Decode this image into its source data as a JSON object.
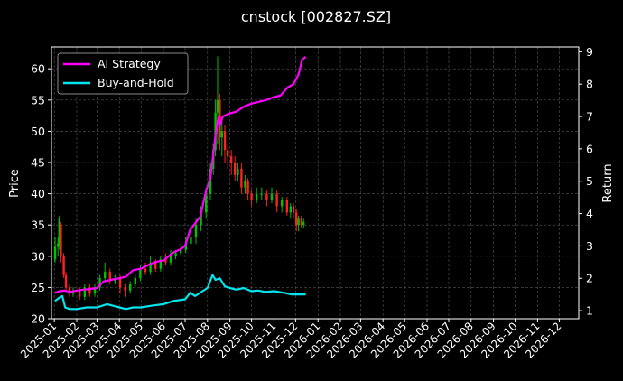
{
  "chart_data": {
    "type": "line",
    "title": "cnstock [002827.SZ]",
    "ylabel_left": "Price",
    "ylabel_right": "Return",
    "xlabel": "",
    "grid": true,
    "legend_position": "top-left",
    "x_ticks": [
      "2025-01",
      "2025-02",
      "2025-03",
      "2025-04",
      "2025-05",
      "2025-06",
      "2025-07",
      "2025-08",
      "2025-09",
      "2025-10",
      "2025-11",
      "2025-12",
      "2026-01",
      "2026-02",
      "2026-03",
      "2026-04",
      "2026-05",
      "2026-06",
      "2026-07",
      "2026-08",
      "2026-09",
      "2026-10",
      "2026-11",
      "2026-12"
    ],
    "x_range": [
      "2024-12-28",
      "2026-12-28"
    ],
    "ylim_left": [
      20,
      63.5
    ],
    "yticks_left": [
      20,
      25,
      30,
      35,
      40,
      45,
      50,
      55,
      60
    ],
    "ylim_right": [
      0.75,
      9.15
    ],
    "yticks_right": [
      1,
      2,
      3,
      4,
      5,
      6,
      7,
      8,
      9
    ],
    "colors": {
      "up": "#00c000",
      "down": "#ff2020",
      "ai": "#ff00ff",
      "bh": "#00e5ee",
      "grid": "#555555"
    },
    "series": [
      {
        "name": "AI Strategy",
        "axis": "right",
        "points": [
          [
            "2025-01-02",
            1.55
          ],
          [
            "2025-01-08",
            1.6
          ],
          [
            "2025-01-15",
            1.62
          ],
          [
            "2025-01-22",
            1.58
          ],
          [
            "2025-02-01",
            1.62
          ],
          [
            "2025-02-10",
            1.65
          ],
          [
            "2025-02-20",
            1.67
          ],
          [
            "2025-03-01",
            1.7
          ],
          [
            "2025-03-10",
            1.9
          ],
          [
            "2025-03-20",
            1.95
          ],
          [
            "2025-04-01",
            2.0
          ],
          [
            "2025-04-10",
            2.05
          ],
          [
            "2025-04-20",
            2.25
          ],
          [
            "2025-05-01",
            2.3
          ],
          [
            "2025-05-10",
            2.4
          ],
          [
            "2025-05-20",
            2.5
          ],
          [
            "2025-06-01",
            2.55
          ],
          [
            "2025-06-15",
            2.8
          ],
          [
            "2025-06-25",
            2.9
          ],
          [
            "2025-07-01",
            3.0
          ],
          [
            "2025-07-08",
            3.5
          ],
          [
            "2025-07-15",
            3.7
          ],
          [
            "2025-07-22",
            3.9
          ],
          [
            "2025-07-30",
            4.7
          ],
          [
            "2025-08-05",
            5.1
          ],
          [
            "2025-08-12",
            6.4
          ],
          [
            "2025-08-16",
            7.0
          ],
          [
            "2025-08-18",
            6.7
          ],
          [
            "2025-08-22",
            7.0
          ],
          [
            "2025-09-01",
            7.1
          ],
          [
            "2025-09-10",
            7.15
          ],
          [
            "2025-09-20",
            7.3
          ],
          [
            "2025-10-01",
            7.4
          ],
          [
            "2025-10-10",
            7.45
          ],
          [
            "2025-10-20",
            7.5
          ],
          [
            "2025-11-01",
            7.6
          ],
          [
            "2025-11-10",
            7.65
          ],
          [
            "2025-11-20",
            7.9
          ],
          [
            "2025-11-28",
            8.0
          ],
          [
            "2025-12-05",
            8.3
          ],
          [
            "2025-12-10",
            8.75
          ],
          [
            "2025-12-15",
            8.85
          ]
        ]
      },
      {
        "name": "Buy-and-Hold",
        "axis": "right",
        "points": [
          [
            "2025-01-02",
            1.3
          ],
          [
            "2025-01-08",
            1.4
          ],
          [
            "2025-01-12",
            1.45
          ],
          [
            "2025-01-16",
            1.1
          ],
          [
            "2025-01-22",
            1.05
          ],
          [
            "2025-02-01",
            1.05
          ],
          [
            "2025-02-15",
            1.1
          ],
          [
            "2025-03-01",
            1.1
          ],
          [
            "2025-03-15",
            1.2
          ],
          [
            "2025-04-01",
            1.1
          ],
          [
            "2025-04-10",
            1.05
          ],
          [
            "2025-04-20",
            1.1
          ],
          [
            "2025-05-01",
            1.1
          ],
          [
            "2025-05-15",
            1.15
          ],
          [
            "2025-06-01",
            1.2
          ],
          [
            "2025-06-15",
            1.3
          ],
          [
            "2025-07-01",
            1.35
          ],
          [
            "2025-07-08",
            1.55
          ],
          [
            "2025-07-15",
            1.45
          ],
          [
            "2025-07-25",
            1.6
          ],
          [
            "2025-08-01",
            1.7
          ],
          [
            "2025-08-08",
            2.1
          ],
          [
            "2025-08-12",
            1.95
          ],
          [
            "2025-08-18",
            2.0
          ],
          [
            "2025-08-25",
            1.75
          ],
          [
            "2025-09-01",
            1.7
          ],
          [
            "2025-09-10",
            1.65
          ],
          [
            "2025-09-20",
            1.7
          ],
          [
            "2025-10-01",
            1.6
          ],
          [
            "2025-10-10",
            1.62
          ],
          [
            "2025-10-20",
            1.58
          ],
          [
            "2025-11-01",
            1.6
          ],
          [
            "2025-11-15",
            1.55
          ],
          [
            "2025-11-25",
            1.5
          ],
          [
            "2025-12-05",
            1.5
          ],
          [
            "2025-12-15",
            1.5
          ]
        ]
      }
    ],
    "candles": [
      [
        "2025-01-02",
        29.5,
        31.5,
        29,
        33
      ],
      [
        "2025-01-06",
        31.5,
        32,
        30,
        33
      ],
      [
        "2025-01-08",
        32,
        36,
        31,
        36.5
      ],
      [
        "2025-01-10",
        35,
        30,
        29,
        35.5
      ],
      [
        "2025-01-14",
        30,
        27,
        26.5,
        30.5
      ],
      [
        "2025-01-17",
        27,
        25,
        24.5,
        27.5
      ],
      [
        "2025-01-22",
        25,
        24,
        23.5,
        25.5
      ],
      [
        "2025-01-27",
        24,
        24.5,
        23.5,
        25
      ],
      [
        "2025-02-05",
        24.5,
        23.5,
        23,
        25
      ],
      [
        "2025-02-12",
        23.5,
        25,
        23,
        25.5
      ],
      [
        "2025-02-19",
        25,
        24,
        23.5,
        25.5
      ],
      [
        "2025-02-26",
        24,
        25,
        23.5,
        25.5
      ],
      [
        "2025-03-05",
        25,
        26.5,
        24.5,
        27
      ],
      [
        "2025-03-12",
        26.5,
        27.5,
        26,
        29
      ],
      [
        "2025-03-19",
        27.5,
        26,
        25.5,
        28
      ],
      [
        "2025-03-26",
        26,
        26.5,
        25.5,
        27
      ],
      [
        "2025-04-02",
        26.5,
        25,
        24,
        27
      ],
      [
        "2025-04-09",
        25,
        24.5,
        23.5,
        25.5
      ],
      [
        "2025-04-16",
        24.5,
        25.5,
        24,
        26
      ],
      [
        "2025-04-23",
        25.5,
        26.5,
        25,
        27
      ],
      [
        "2025-04-30",
        26.5,
        28,
        26,
        28.5
      ],
      [
        "2025-05-07",
        28,
        27.5,
        27,
        29
      ],
      [
        "2025-05-14",
        27.5,
        29,
        27,
        30
      ],
      [
        "2025-05-21",
        29,
        28,
        27.5,
        29.5
      ],
      [
        "2025-05-28",
        28,
        29.5,
        27.5,
        30
      ],
      [
        "2025-06-04",
        29.5,
        29,
        28.5,
        30.5
      ],
      [
        "2025-06-11",
        29,
        30,
        28.5,
        31
      ],
      [
        "2025-06-18",
        30,
        30.5,
        29.5,
        31
      ],
      [
        "2025-06-25",
        30.5,
        31,
        30,
        32
      ],
      [
        "2025-07-02",
        31,
        32,
        30.5,
        33
      ],
      [
        "2025-07-09",
        32,
        33,
        31.5,
        33.5
      ],
      [
        "2025-07-16",
        33,
        35,
        32,
        36
      ],
      [
        "2025-07-23",
        35,
        37,
        34,
        38
      ],
      [
        "2025-07-30",
        37,
        40,
        36,
        41
      ],
      [
        "2025-08-05",
        40,
        44,
        39,
        45
      ],
      [
        "2025-08-09",
        44,
        47,
        43,
        48
      ],
      [
        "2025-08-12",
        47,
        53,
        46,
        55
      ],
      [
        "2025-08-15",
        53,
        55,
        48,
        62
      ],
      [
        "2025-08-18",
        55,
        49,
        47,
        56
      ],
      [
        "2025-08-21",
        49,
        50,
        46,
        52
      ],
      [
        "2025-08-25",
        50,
        47,
        45,
        51
      ],
      [
        "2025-08-29",
        47,
        46,
        44,
        48
      ],
      [
        "2025-09-03",
        46,
        45,
        43,
        47
      ],
      [
        "2025-09-08",
        45,
        43,
        42,
        46
      ],
      [
        "2025-09-12",
        43,
        44,
        42,
        45
      ],
      [
        "2025-09-17",
        44,
        41,
        40,
        45
      ],
      [
        "2025-09-22",
        41,
        42,
        40,
        43
      ],
      [
        "2025-09-26",
        42,
        40,
        39,
        42.5
      ],
      [
        "2025-10-01",
        40,
        39,
        38,
        40.5
      ],
      [
        "2025-10-08",
        39,
        40,
        38.5,
        41
      ],
      [
        "2025-10-15",
        40,
        40,
        39,
        41
      ],
      [
        "2025-10-22",
        40,
        39,
        38,
        40.5
      ],
      [
        "2025-10-29",
        39,
        40,
        38.5,
        41
      ],
      [
        "2025-11-05",
        40,
        38,
        37,
        40.5
      ],
      [
        "2025-11-12",
        38,
        39,
        37,
        39.5
      ],
      [
        "2025-11-19",
        39,
        37,
        36.5,
        39.5
      ],
      [
        "2025-11-24",
        37,
        38,
        36,
        38.5
      ],
      [
        "2025-11-28",
        38,
        37,
        36,
        38.5
      ],
      [
        "2025-12-02",
        37,
        35,
        34,
        37.5
      ],
      [
        "2025-12-05",
        35,
        36,
        34,
        36.5
      ],
      [
        "2025-12-09",
        36,
        35,
        34.5,
        36.5
      ],
      [
        "2025-12-12",
        35,
        35.5,
        34.5,
        36
      ]
    ]
  }
}
